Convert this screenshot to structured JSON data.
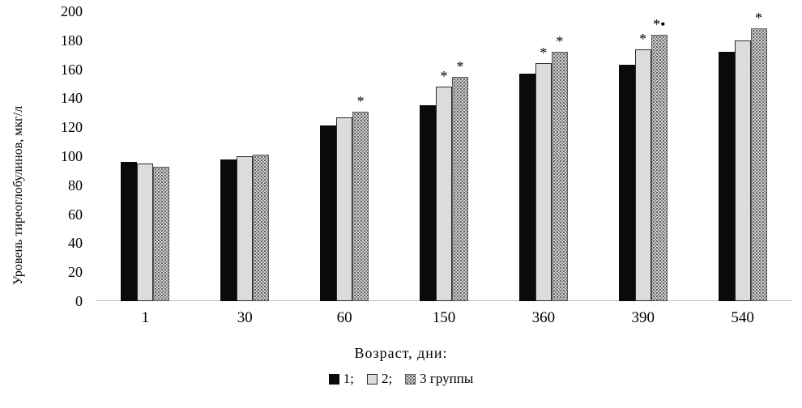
{
  "chart_data": {
    "type": "bar",
    "categories": [
      "1",
      "30",
      "60",
      "150",
      "360",
      "390",
      "540"
    ],
    "series": [
      {
        "name": "1",
        "legend_label": "1;",
        "fill": "#0a0a0a",
        "values": [
          96,
          98,
          121,
          135,
          157,
          163,
          172
        ],
        "annotations": [
          "",
          "",
          "",
          "",
          "",
          "",
          ""
        ]
      },
      {
        "name": "2",
        "legend_label": "2;",
        "fill": "#dcdcdc",
        "values": [
          95,
          100,
          127,
          148,
          164,
          174,
          180
        ],
        "annotations": [
          "",
          "",
          "",
          "*",
          "*",
          "*",
          ""
        ]
      },
      {
        "name": "3",
        "legend_label": "3 группы",
        "fill": "speckle-texture",
        "values": [
          93,
          101,
          131,
          155,
          172,
          184,
          188
        ],
        "annotations": [
          "",
          "",
          "*",
          "*",
          "*",
          "*•",
          "*"
        ]
      }
    ],
    "title": "",
    "xlabel": "Возраст,  дни:",
    "ylabel": "Уровень тиреоглобулинов, мкг/л",
    "ylim": [
      0,
      200
    ],
    "ytick_step": 20,
    "grid": false,
    "legend_position": "bottom"
  }
}
